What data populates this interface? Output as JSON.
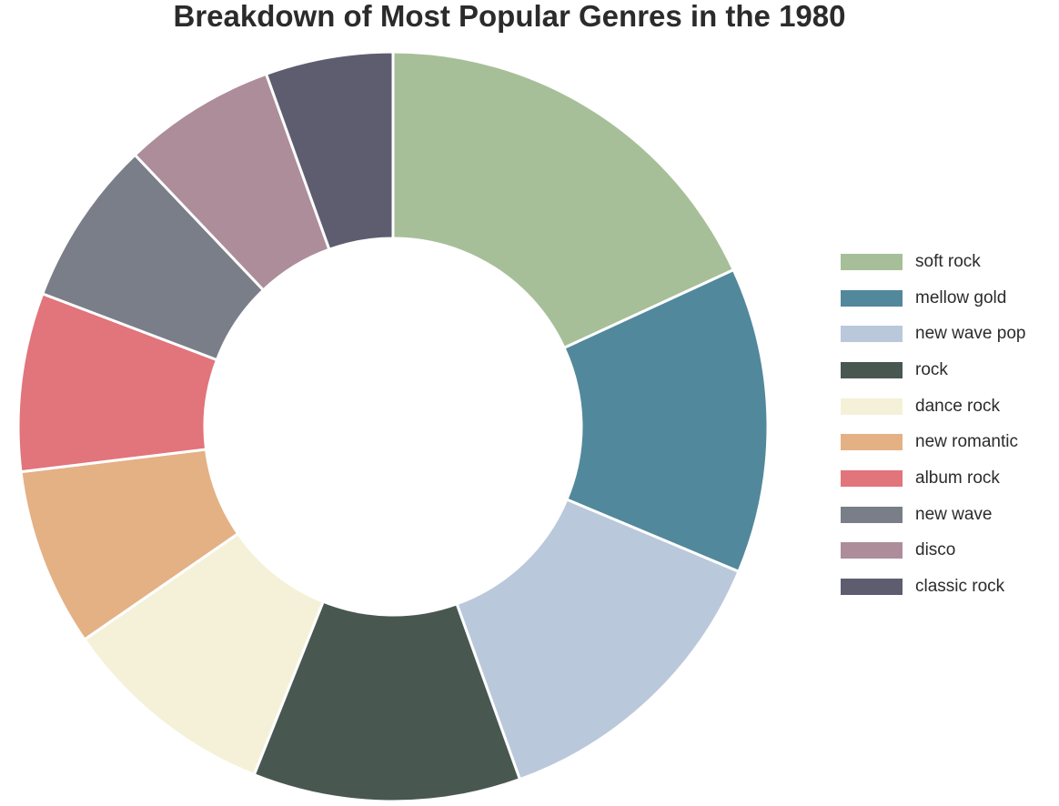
{
  "chart_data": {
    "type": "pie",
    "variant": "donut",
    "title": "Breakdown of Most Popular Genres in the 1980",
    "series": [
      {
        "name": "soft rock",
        "value": 16.5,
        "color": "#a7bf98"
      },
      {
        "name": "mellow gold",
        "value": 12.0,
        "color": "#52889c"
      },
      {
        "name": "new wave pop",
        "value": 12.0,
        "color": "#bac8db"
      },
      {
        "name": "rock",
        "value": 10.5,
        "color": "#485851"
      },
      {
        "name": "dance rock",
        "value": 8.5,
        "color": "#f5f1d8"
      },
      {
        "name": "new romantic",
        "value": 7.0,
        "color": "#e4b185"
      },
      {
        "name": "album rock",
        "value": 7.0,
        "color": "#e2747b"
      },
      {
        "name": "new wave",
        "value": 6.5,
        "color": "#797e88"
      },
      {
        "name": "disco",
        "value": 6.0,
        "color": "#ad8d9a"
      },
      {
        "name": "classic rock",
        "value": 5.0,
        "color": "#5e5d70"
      }
    ],
    "legend": "right"
  }
}
